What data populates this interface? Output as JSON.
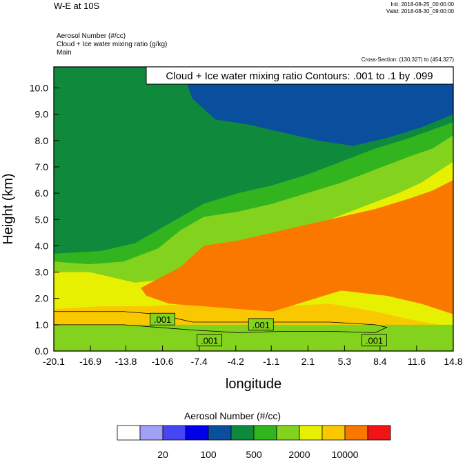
{
  "header": {
    "title": "W-E at 10S",
    "init": "Init: 2018-08-25_00:00:00",
    "valid": "Valid: 2018-08-30_09:00:00",
    "var_lines": [
      "Aerosol Number   (#/cc)",
      "Cloud + Ice water mixing ratio   (g/kg)",
      "Main"
    ],
    "cross_section": "Cross-Section: (130,327) to (454,327)",
    "contour_label": "Cloud + Ice water mixing ratio Contours: .001 to .1 by .099"
  },
  "chart_data": {
    "type": "heatmap",
    "xlabel": "longitude",
    "ylabel": "Height (km)",
    "xlim": [
      -20.1,
      14.8
    ],
    "ylim": [
      0.0,
      10.8
    ],
    "x_ticks": [
      "-20.1",
      "-16.9",
      "-13.8",
      "-10.6",
      "-7.4",
      "-4.2",
      "-1.1",
      "2.1",
      "5.3",
      "8.4",
      "11.6",
      "14.8"
    ],
    "y_ticks": [
      "0.0",
      "1.0",
      "2.0",
      "3.0",
      "4.0",
      "5.0",
      "6.0",
      "7.0",
      "8.0",
      "9.0",
      "10.0"
    ],
    "colorbar": {
      "title": "Aerosol Number  (#/cc)",
      "colors": [
        "#ffffff",
        "#a0a0f5",
        "#4646f5",
        "#0000e8",
        "#0a4e9e",
        "#0f8a3c",
        "#32b41e",
        "#82d21e",
        "#e6f000",
        "#fac800",
        "#fa7800",
        "#f01414"
      ],
      "tick_labels": [
        "20",
        "100",
        "500",
        "2000",
        "10000"
      ]
    },
    "contour_labels": [
      {
        "text": ".001",
        "x": -10.6,
        "y": 1.2
      },
      {
        "text": ".001",
        "x": -2.0,
        "y": 1.0
      },
      {
        "text": ".001",
        "x": -6.5,
        "y": 0.4
      },
      {
        "text": ".001",
        "x": 7.9,
        "y": 0.4
      }
    ],
    "field_bands": [
      {
        "level": 7,
        "top": [
          [
            -20.1,
            1.6
          ],
          [
            -16,
            1.7
          ],
          [
            -12,
            1.7
          ],
          [
            -8,
            1.8
          ],
          [
            -4,
            1.9
          ],
          [
            0,
            1.7
          ],
          [
            4,
            1.8
          ],
          [
            8,
            1.5
          ],
          [
            11,
            1.2
          ],
          [
            14.8,
            0.9
          ]
        ]
      },
      {
        "level": 8,
        "top": [
          [
            -20.1,
            3.0
          ],
          [
            -17,
            3.0
          ],
          [
            -15,
            2.8
          ],
          [
            -13,
            2.6
          ],
          [
            -11,
            2.7
          ],
          [
            -8,
            3.3
          ],
          [
            -5,
            3.9
          ],
          [
            -2,
            4.2
          ],
          [
            1,
            4.6
          ],
          [
            4,
            5.0
          ],
          [
            7,
            5.5
          ],
          [
            10,
            6.0
          ],
          [
            12,
            6.4
          ],
          [
            14.8,
            7.2
          ]
        ]
      },
      {
        "level": 9,
        "top": [
          [
            -20.1,
            3.4
          ],
          [
            -17,
            3.3
          ],
          [
            -14,
            3.4
          ],
          [
            -11,
            3.9
          ],
          [
            -9,
            4.6
          ],
          [
            -7,
            5.1
          ],
          [
            -4,
            5.3
          ],
          [
            -1,
            5.6
          ],
          [
            2,
            6.0
          ],
          [
            5,
            6.4
          ],
          [
            8,
            6.9
          ],
          [
            11,
            7.4
          ],
          [
            13,
            7.7
          ],
          [
            14.8,
            8.2
          ]
        ]
      },
      {
        "level": 10,
        "top": [
          [
            -20.1,
            3.7
          ],
          [
            -16,
            3.8
          ],
          [
            -13,
            4.1
          ],
          [
            -11,
            4.6
          ],
          [
            -9,
            5.1
          ],
          [
            -7,
            5.6
          ],
          [
            -4,
            6.0
          ],
          [
            -1,
            6.3
          ],
          [
            2,
            6.7
          ],
          [
            5,
            7.2
          ],
          [
            8,
            7.7
          ],
          [
            11,
            8.1
          ],
          [
            14.8,
            8.7
          ]
        ]
      },
      {
        "level": 5,
        "top": [
          [
            -20.1,
            10.8
          ],
          [
            -9,
            10.8
          ],
          [
            -8,
            9.6
          ],
          [
            -6,
            8.8
          ],
          [
            -3,
            8.6
          ],
          [
            0,
            8.3
          ],
          [
            3,
            8.0
          ],
          [
            6,
            7.8
          ],
          [
            9,
            8.1
          ],
          [
            12,
            8.5
          ],
          [
            14.8,
            9.0
          ]
        ]
      }
    ],
    "orange_core": [
      [
        -12.5,
        2.4
      ],
      [
        -9,
        3.2
      ],
      [
        -7,
        4.0
      ],
      [
        -4,
        4.2
      ],
      [
        -1,
        4.5
      ],
      [
        2,
        4.8
      ],
      [
        5,
        5.1
      ],
      [
        8,
        5.4
      ],
      [
        11,
        5.8
      ],
      [
        13,
        6.1
      ],
      [
        14.8,
        6.5
      ],
      [
        14.8,
        1.4
      ],
      [
        12,
        1.8
      ],
      [
        9,
        2.1
      ],
      [
        5,
        2.3
      ],
      [
        2,
        1.9
      ],
      [
        -1,
        1.5
      ],
      [
        -4,
        1.6
      ],
      [
        -7,
        1.7
      ],
      [
        -10,
        1.8
      ],
      [
        -12,
        2.1
      ]
    ]
  }
}
